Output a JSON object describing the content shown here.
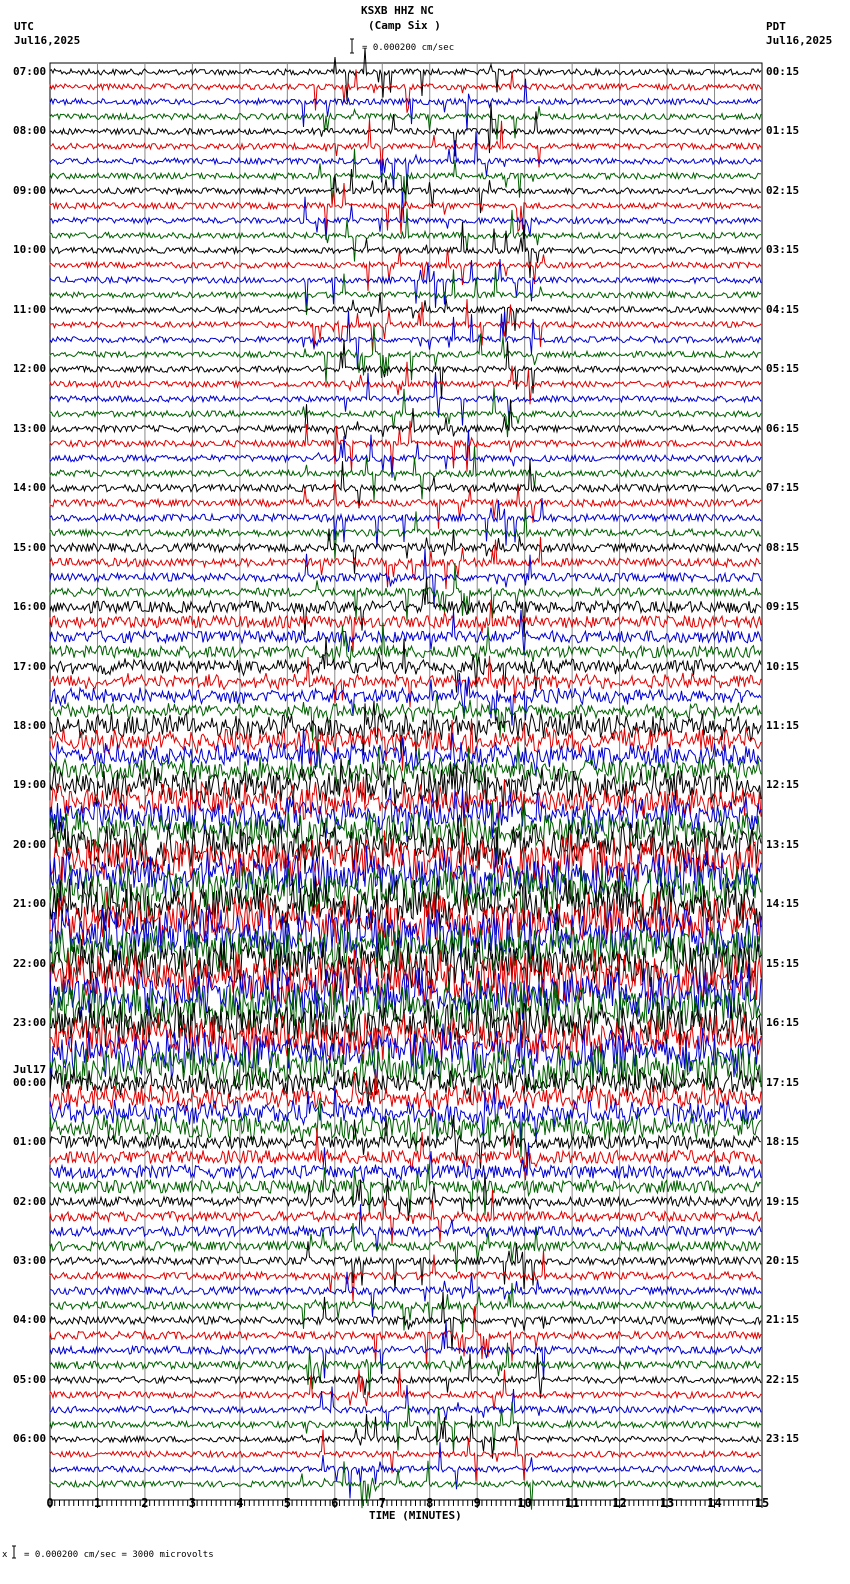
{
  "header": {
    "station": "KSXB HHZ NC",
    "location": "(Camp Six )",
    "scale_text": "= 0.000200 cm/sec",
    "left_tz": "UTC",
    "left_date": "Jul16,2025",
    "right_tz": "PDT",
    "right_date": "Jul16,2025"
  },
  "footer": {
    "scale_prefix": "x",
    "scale_text": "= 0.000200 cm/sec =    3000 microvolts"
  },
  "chart_data": {
    "type": "line",
    "title": "KSXB HHZ NC (Camp Six )",
    "subtitle": "Seismogram helicorder, 15 minutes per line, 4 lines per hour",
    "xlabel": "TIME (MINUTES)",
    "ylabel": "",
    "xlim": [
      0,
      15
    ],
    "x_ticks": [
      "0",
      "1",
      "2",
      "3",
      "4",
      "5",
      "6",
      "7",
      "8",
      "9",
      "10",
      "11",
      "12",
      "13",
      "14",
      "15"
    ],
    "trace_colors": [
      "#000000",
      "#e00000",
      "#0000d0",
      "#006000"
    ],
    "grid": true,
    "left_labels_utc": [
      "07:00",
      "08:00",
      "09:00",
      "10:00",
      "11:00",
      "12:00",
      "13:00",
      "14:00",
      "15:00",
      "16:00",
      "17:00",
      "18:00",
      "19:00",
      "20:00",
      "21:00",
      "22:00",
      "23:00",
      "00:00",
      "01:00",
      "02:00",
      "03:00",
      "04:00",
      "05:00",
      "06:00"
    ],
    "date_change_label": "Jul17",
    "date_change_index": 17,
    "right_labels_pdt": [
      "00:15",
      "01:15",
      "02:15",
      "03:15",
      "04:15",
      "05:15",
      "06:15",
      "07:15",
      "08:15",
      "09:15",
      "10:15",
      "11:15",
      "12:15",
      "13:15",
      "14:15",
      "15:15",
      "16:15",
      "17:15",
      "18:15",
      "19:15",
      "20:15",
      "21:15",
      "22:15",
      "23:15"
    ],
    "amplitude_profile_by_hour": [
      1,
      1,
      1,
      1,
      1,
      1,
      1.1,
      1.2,
      1.4,
      2,
      3,
      5,
      7,
      9,
      10,
      10,
      9,
      5,
      2.5,
      1.6,
      1.3,
      1.3,
      1.1,
      1
    ],
    "scale": "0.000200 cm/sec = 3000 microvolts"
  }
}
